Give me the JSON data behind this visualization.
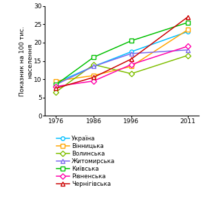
{
  "years": [
    1976,
    1986,
    1996,
    2011
  ],
  "series": [
    {
      "label": "Україна",
      "values": [
        9.0,
        13.5,
        17.5,
        23.0
      ],
      "color": "#00BFFF",
      "marker": "o",
      "markersize": 4,
      "markerfacecolor": "white"
    },
    {
      "label": "Вінницька",
      "values": [
        9.5,
        11.0,
        13.5,
        23.5
      ],
      "color": "#FFA500",
      "marker": "s",
      "markersize": 4,
      "markerfacecolor": "white"
    },
    {
      "label": "Волинська",
      "values": [
        6.5,
        14.0,
        11.5,
        16.5
      ],
      "color": "#7FBF00",
      "marker": "D",
      "markersize": 4,
      "markerfacecolor": "white"
    },
    {
      "label": "Житомирська",
      "values": [
        8.5,
        13.5,
        17.0,
        18.0
      ],
      "color": "#7B68EE",
      "marker": "^",
      "markersize": 4,
      "markerfacecolor": "white"
    },
    {
      "label": "Київська",
      "values": [
        8.5,
        16.0,
        20.5,
        25.5
      ],
      "color": "#00C000",
      "marker": "s",
      "markersize": 5,
      "markerfacecolor": "white"
    },
    {
      "label": "Рівненська",
      "values": [
        8.0,
        9.5,
        14.0,
        19.0
      ],
      "color": "#FF00AA",
      "marker": "D",
      "markersize": 4,
      "markerfacecolor": "white"
    },
    {
      "label": "Чернігівська",
      "values": [
        7.5,
        10.5,
        15.5,
        27.0
      ],
      "color": "#CC0000",
      "marker": "^",
      "markersize": 4,
      "markerfacecolor": "white"
    }
  ],
  "ylabel": "Показник на 100 тис.\nнаселення",
  "ylim": [
    0,
    30
  ],
  "yticks": [
    0,
    5,
    10,
    15,
    20,
    25,
    30
  ],
  "legend_fontsize": 6.2,
  "axis_fontsize": 6.5,
  "tick_fontsize": 6.5,
  "linewidth": 1.1
}
